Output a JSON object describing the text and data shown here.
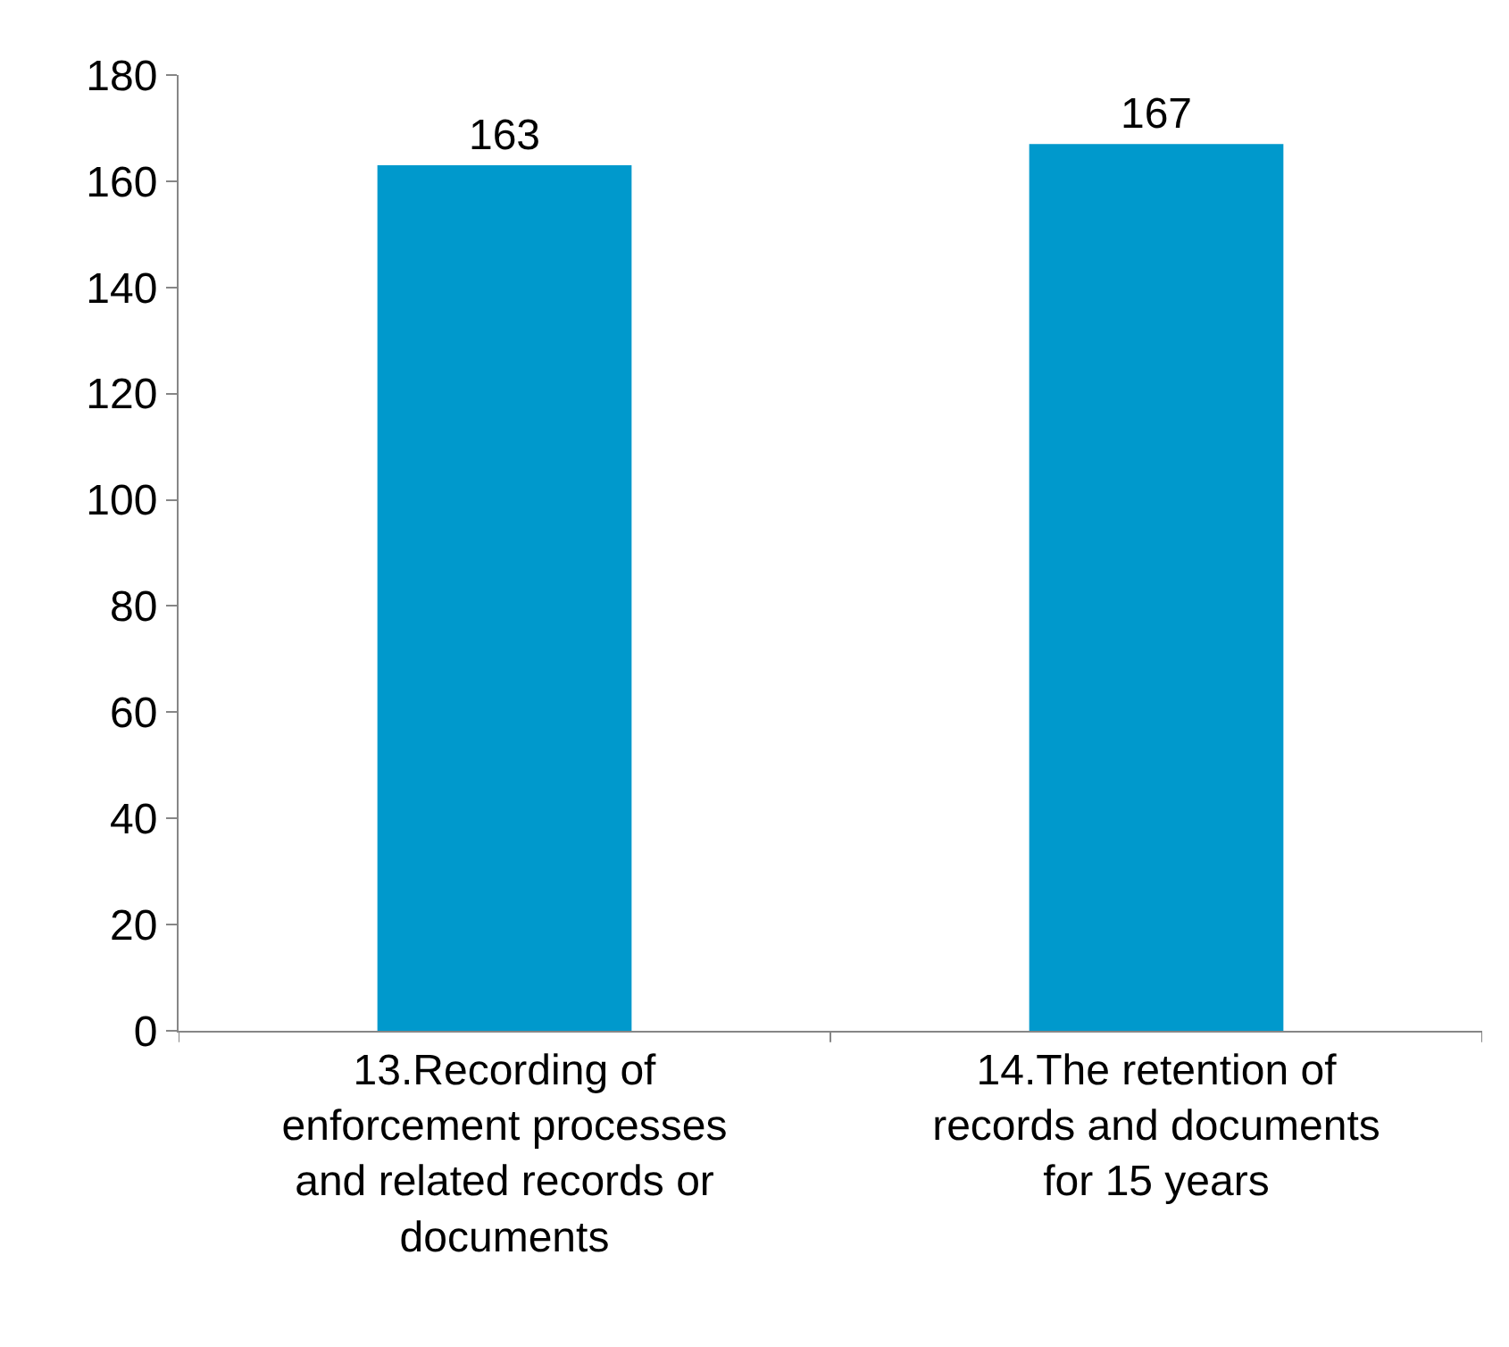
{
  "chart_data": {
    "type": "bar",
    "categories": [
      "13.Recording of enforcement processes and related records or documents",
      "14.The retention of records and documents for 15 years"
    ],
    "values": [
      163,
      167
    ],
    "color": "#0099cc",
    "ylim": [
      0,
      180
    ],
    "yticks": [
      0,
      20,
      40,
      60,
      80,
      100,
      120,
      140,
      160,
      180
    ],
    "data_labels": true
  }
}
